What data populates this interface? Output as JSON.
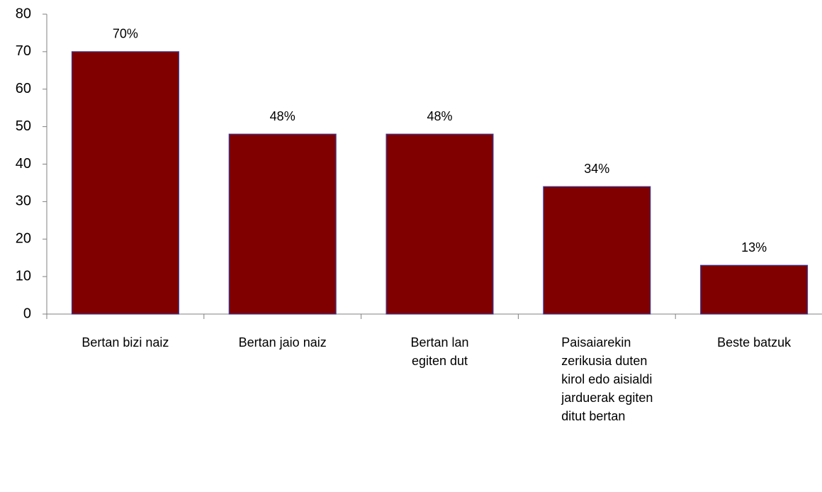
{
  "chart_data": {
    "type": "bar",
    "categories": [
      "Bertan bizi naiz",
      "Bertan jaio naiz",
      "Bertan lan egiten dut",
      "Paisaiarekin zerikusia duten kirol edo aisialdi jarduerak egiten ditut bertan",
      "Beste batzuk"
    ],
    "values": [
      70,
      48,
      48,
      34,
      13
    ],
    "value_labels": [
      "70%",
      "48%",
      "48%",
      "34%",
      "13%"
    ],
    "color": "#800000",
    "ylim": [
      0,
      80
    ],
    "yticks": [
      0,
      10,
      20,
      30,
      40,
      50,
      60,
      70,
      80
    ],
    "grid": false
  }
}
